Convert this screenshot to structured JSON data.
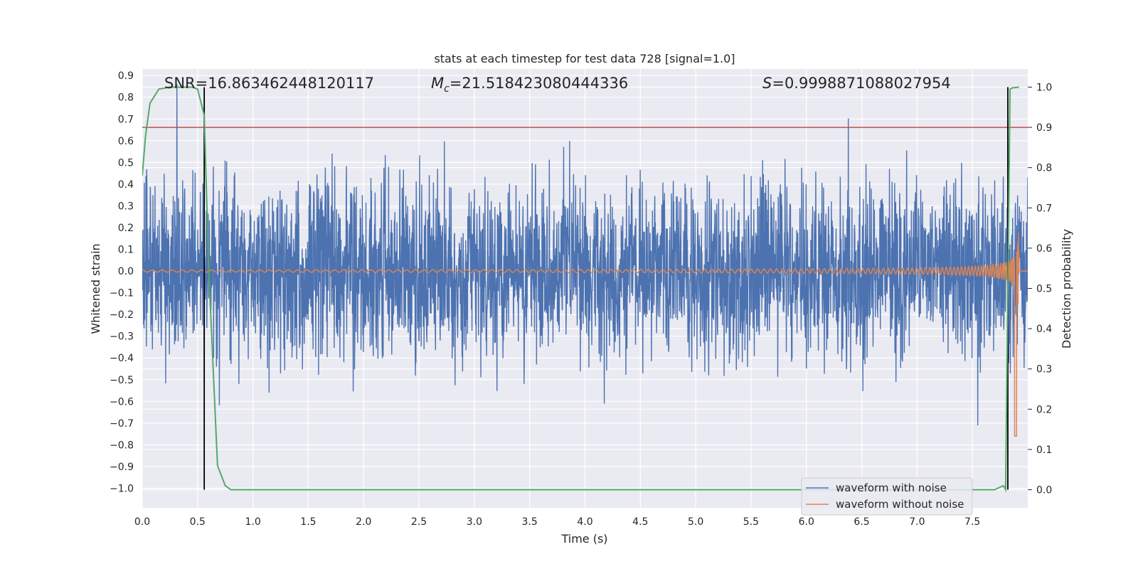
{
  "chart_data": {
    "type": "line",
    "title": "stats at each timestep for test data 728 [signal=1.0]",
    "xlabel": "Time (s)",
    "ylabel": "Whitened strain",
    "ylabel_right": "Detection probability",
    "xlim": [
      0.0,
      8.0
    ],
    "ylim": [
      -1.09,
      0.93
    ],
    "ylim_right": [
      -0.045,
      1.045
    ],
    "x_ticks": [
      "0.0",
      "0.5",
      "1.0",
      "1.5",
      "2.0",
      "2.5",
      "3.0",
      "3.5",
      "4.0",
      "4.5",
      "5.0",
      "5.5",
      "6.0",
      "6.5",
      "7.0",
      "7.5"
    ],
    "x_tick_values": [
      0.0,
      0.5,
      1.0,
      1.5,
      2.0,
      2.5,
      3.0,
      3.5,
      4.0,
      4.5,
      5.0,
      5.5,
      6.0,
      6.5,
      7.0,
      7.5
    ],
    "y_ticks": [
      "−1.0",
      "−0.9",
      "−0.8",
      "−0.7",
      "−0.6",
      "−0.5",
      "−0.4",
      "−0.3",
      "−0.2",
      "−0.1",
      "0.0",
      "0.1",
      "0.2",
      "0.3",
      "0.4",
      "0.5",
      "0.6",
      "0.7",
      "0.8",
      "0.9"
    ],
    "y_tick_values": [
      -1.0,
      -0.9,
      -0.8,
      -0.7,
      -0.6,
      -0.5,
      -0.4,
      -0.3,
      -0.2,
      -0.1,
      0.0,
      0.1,
      0.2,
      0.3,
      0.4,
      0.5,
      0.6,
      0.7,
      0.8,
      0.9
    ],
    "y_right_ticks": [
      "0.0",
      "0.1",
      "0.2",
      "0.3",
      "0.4",
      "0.5",
      "0.6",
      "0.7",
      "0.8",
      "0.9",
      "1.0"
    ],
    "y_right_tick_values": [
      0.0,
      0.1,
      0.2,
      0.3,
      0.4,
      0.5,
      0.6,
      0.7,
      0.8,
      0.9,
      1.0
    ],
    "annotations": {
      "snr": "SNR=16.863462448120117",
      "mc_symbol": "M",
      "mc_sub": "c",
      "mc_value": "=21.518423080444336",
      "s_symbol": "S",
      "s_value": "=0.9998871088027954"
    },
    "legend": {
      "location": "lower right",
      "entries": [
        {
          "label": "waveform with noise",
          "color": "#4c72b0"
        },
        {
          "label": "waveform without noise",
          "color": "#dd8452"
        }
      ]
    },
    "series": [
      {
        "name": "waveform with noise",
        "axis": "left",
        "color": "#4c72b0",
        "description": "whitened noisy strain, mostly within ±0.5 with spikes to ~0.85 and ~-0.8"
      },
      {
        "name": "waveform without noise",
        "axis": "left",
        "color": "#dd8452",
        "chirp": {
          "start": 0.0,
          "end": 7.92,
          "amplitude_start": 0.005,
          "amplitude_end": 0.5,
          "min_peak": -0.76
        }
      },
      {
        "name": "detection probability",
        "axis": "right",
        "color": "#55a868",
        "x": [
          0.0,
          0.03,
          0.07,
          0.15,
          0.25,
          0.35,
          0.45,
          0.5,
          0.56,
          0.6,
          0.68,
          0.75,
          0.8,
          0.9,
          2.0,
          4.0,
          6.0,
          7.7,
          7.78,
          7.8,
          7.82,
          7.84,
          7.86,
          7.92
        ],
        "y": [
          0.78,
          0.88,
          0.96,
          0.995,
          1.0,
          1.0,
          1.0,
          0.995,
          0.93,
          0.55,
          0.06,
          0.01,
          0.0,
          0.0,
          0.0,
          0.0,
          0.0,
          0.0,
          0.01,
          0.0,
          0.5,
          0.995,
          0.998,
          1.0
        ]
      }
    ],
    "hlines": [
      {
        "axis": "right",
        "y": 0.9,
        "color": "#c44e52"
      }
    ],
    "vlines": [
      {
        "x": 0.56,
        "y_right_range": [
          0.0,
          1.0
        ],
        "color": "#000000"
      },
      {
        "x": 7.82,
        "y_right_range": [
          0.0,
          1.0
        ],
        "color": "#000000"
      }
    ]
  }
}
